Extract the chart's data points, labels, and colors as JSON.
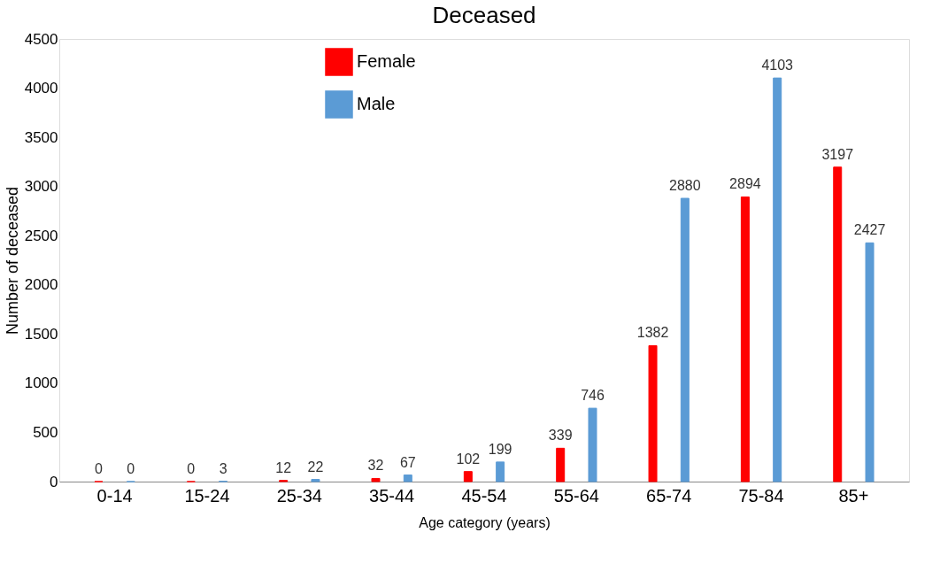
{
  "chart_data": {
    "type": "bar",
    "title": "Deceased",
    "xlabel": "Age category (years)",
    "ylabel": "Number  of deceased",
    "categories": [
      "0-14",
      "15-24",
      "25-34",
      "35-44",
      "45-54",
      "55-64",
      "65-74",
      "75-84",
      "85+"
    ],
    "series": [
      {
        "name": "Female",
        "color": "#ff0000",
        "values": [
          0,
          0,
          12,
          32,
          102,
          339,
          1382,
          2894,
          3197
        ]
      },
      {
        "name": "Male",
        "color": "#5b9bd5",
        "values": [
          0,
          3,
          22,
          67,
          199,
          746,
          2880,
          4103,
          2427
        ]
      }
    ],
    "ylim": [
      0,
      4500
    ],
    "yticks": [
      0,
      500,
      1000,
      1500,
      2000,
      2500,
      3000,
      3500,
      4000,
      4500
    ],
    "data_labels": true,
    "grid": false,
    "legend": "top left"
  }
}
